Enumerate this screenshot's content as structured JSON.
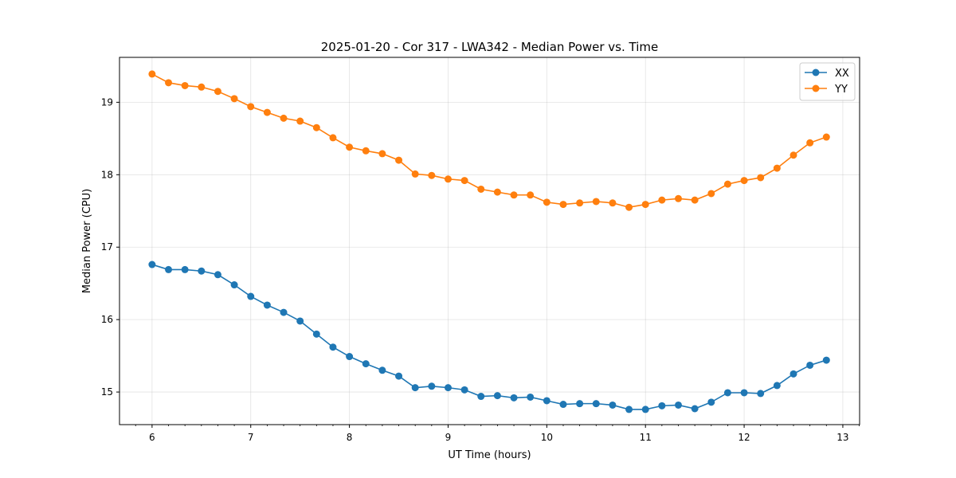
{
  "chart_data": {
    "type": "line",
    "title": "2025-01-20 - Cor 317 - LWA342 - Median Power vs. Time",
    "xlabel": "UT Time (hours)",
    "ylabel": "Median Power (CPU)",
    "xlim": [
      5.67,
      13.17
    ],
    "ylim": [
      14.55,
      19.62
    ],
    "xticks": [
      6,
      7,
      8,
      9,
      10,
      11,
      12,
      13
    ],
    "xtick_labels": [
      "6",
      "7",
      "8",
      "9",
      "10",
      "11",
      "12",
      "13"
    ],
    "yticks": [
      15,
      16,
      17,
      18,
      19
    ],
    "ytick_labels": [
      "15",
      "16",
      "17",
      "18",
      "19"
    ],
    "grid": true,
    "legend_position": "top-right",
    "x": [
      6.0,
      6.1667,
      6.3333,
      6.5,
      6.6667,
      6.8333,
      7.0,
      7.1667,
      7.3333,
      7.5,
      7.6667,
      7.8333,
      8.0,
      8.1667,
      8.3333,
      8.5,
      8.6667,
      8.8333,
      9.0,
      9.1667,
      9.3333,
      9.5,
      9.6667,
      9.8333,
      10.0,
      10.1667,
      10.3333,
      10.5,
      10.6667,
      10.8333,
      11.0,
      11.1667,
      11.3333,
      11.5,
      11.6667,
      11.8333,
      12.0,
      12.1667,
      12.3333,
      12.5,
      12.6667,
      12.8333
    ],
    "series": [
      {
        "name": "XX",
        "color": "#1f77b4",
        "values": [
          16.76,
          16.69,
          16.69,
          16.67,
          16.62,
          16.48,
          16.32,
          16.2,
          16.1,
          15.98,
          15.8,
          15.62,
          15.49,
          15.39,
          15.3,
          15.22,
          15.06,
          15.08,
          15.06,
          15.03,
          14.94,
          14.95,
          14.92,
          14.93,
          14.88,
          14.83,
          14.84,
          14.84,
          14.82,
          14.76,
          14.76,
          14.81,
          14.82,
          14.77,
          14.86,
          14.99,
          14.99,
          14.98,
          15.09,
          15.25,
          15.37,
          15.44
        ]
      },
      {
        "name": "YY",
        "color": "#ff7f0e",
        "values": [
          19.39,
          19.27,
          19.23,
          19.21,
          19.15,
          19.05,
          18.94,
          18.86,
          18.78,
          18.74,
          18.65,
          18.51,
          18.38,
          18.33,
          18.29,
          18.2,
          18.01,
          17.99,
          17.94,
          17.92,
          17.8,
          17.76,
          17.72,
          17.72,
          17.62,
          17.59,
          17.61,
          17.63,
          17.61,
          17.55,
          17.59,
          17.65,
          17.67,
          17.65,
          17.74,
          17.87,
          17.92,
          17.96,
          18.09,
          18.27,
          18.44,
          18.52
        ]
      }
    ]
  }
}
